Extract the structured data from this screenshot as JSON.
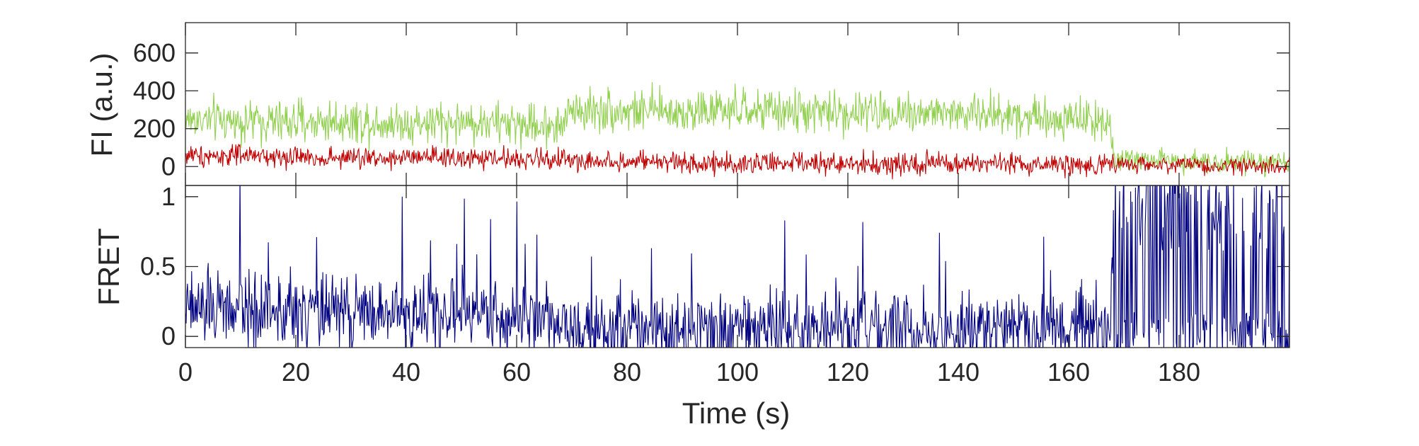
{
  "chart_data": [
    {
      "type": "line",
      "ylabel": "FI (a.u.)",
      "xlim": [
        0,
        200
      ],
      "ylim": [
        -100,
        760
      ],
      "yticks": [
        0,
        200,
        400,
        600
      ],
      "grid": false,
      "series": [
        {
          "color": "#92d050",
          "x": [
            0,
            10,
            20,
            30,
            40,
            50,
            60,
            68,
            70,
            80,
            90,
            100,
            110,
            120,
            130,
            140,
            150,
            160,
            167.5,
            168,
            170,
            180,
            190,
            200
          ],
          "values": [
            250,
            240,
            235,
            240,
            230,
            235,
            225,
            215,
            300,
            295,
            290,
            295,
            290,
            285,
            290,
            280,
            275,
            255,
            250,
            40,
            35,
            30,
            30,
            25
          ]
        },
        {
          "color": "#c00000",
          "x": [
            0,
            10,
            20,
            30,
            40,
            50,
            60,
            68,
            70,
            80,
            90,
            100,
            110,
            120,
            130,
            140,
            150,
            160,
            167.5,
            168,
            170,
            180,
            190,
            200
          ],
          "values": [
            60,
            55,
            50,
            45,
            45,
            42,
            40,
            38,
            30,
            25,
            20,
            18,
            15,
            15,
            12,
            12,
            10,
            10,
            10,
            10,
            10,
            8,
            5,
            5
          ]
        }
      ]
    },
    {
      "type": "line",
      "xlabel": "Time (s)",
      "ylabel": "FRET",
      "xlim": [
        0,
        200
      ],
      "xticks": [
        0,
        20,
        40,
        60,
        80,
        100,
        120,
        140,
        160,
        180
      ],
      "ylim": [
        -0.08,
        1.08
      ],
      "yticks": [
        0,
        0.5,
        1
      ],
      "ytick_labels": [
        "0",
        "0.5",
        "1"
      ],
      "grid": false,
      "series": [
        {
          "color": "#000080",
          "x": [
            0,
            10,
            20,
            30,
            40,
            50,
            60,
            68,
            70,
            80,
            90,
            100,
            110,
            120,
            130,
            140,
            150,
            160,
            167.5,
            168,
            170,
            180,
            190,
            200
          ],
          "values": [
            0.2,
            0.2,
            0.18,
            0.17,
            0.17,
            0.16,
            0.15,
            0.14,
            0.08,
            0.06,
            0.06,
            0.05,
            0.05,
            0.05,
            0.04,
            0.04,
            0.04,
            0.04,
            0.04,
            0.5,
            0.55,
            0.6,
            0.55,
            0.5
          ]
        }
      ]
    }
  ]
}
